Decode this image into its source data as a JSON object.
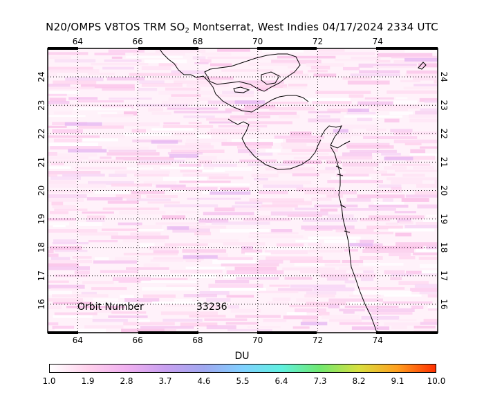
{
  "title": {
    "prefix": "N20/OMPS V8TOS TRM SO",
    "subscript": "2",
    "suffix": " Montserrat, West Indies 04/17/2024 2334 UTC"
  },
  "map": {
    "lon_ticks": [
      "64",
      "66",
      "68",
      "70",
      "72",
      "74"
    ],
    "lat_ticks": [
      "24",
      "23",
      "22",
      "21",
      "20",
      "19",
      "18",
      "17",
      "16"
    ],
    "lon_range": [
      63,
      76
    ],
    "lat_range": [
      15,
      25
    ]
  },
  "orbit": {
    "label": "Orbit Number",
    "value": "33236"
  },
  "colorbar": {
    "unit": "DU",
    "labels": [
      "1.0",
      "1.9",
      "2.8",
      "3.7",
      "4.6",
      "5.5",
      "6.4",
      "7.3",
      "8.2",
      "9.1",
      "10.0"
    ],
    "colors": [
      "#ffffff",
      "#ffd0ec",
      "#f0b0f0",
      "#c8a0f0",
      "#a0a8f0",
      "#80d0ff",
      "#60f0e0",
      "#70e870",
      "#d8e040",
      "#ffa020",
      "#ff3000"
    ]
  }
}
